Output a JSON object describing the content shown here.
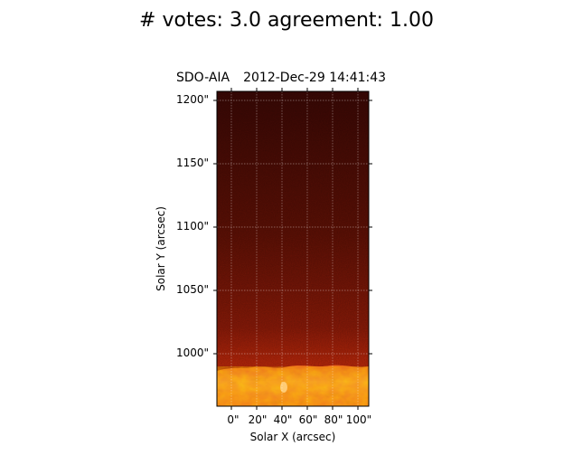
{
  "suptitle": "# votes: 3.0 agreement: 1.00",
  "plot": {
    "instrument": "SDO-AIA",
    "timestamp": "2012-Dec-29 14:41:43",
    "xlabel": "Solar X (arcsec)",
    "ylabel": "Solar Y (arcsec)",
    "xticks": [
      "0\"",
      "20\"",
      "40\"",
      "60\"",
      "80\"",
      "100\""
    ],
    "yticks": [
      "1200\"",
      "1150\"",
      "1100\"",
      "1050\"",
      "1000\""
    ],
    "colors": {
      "top": "#3a0805",
      "mid": "#8a1a08",
      "bottom": "#b5260a",
      "limb": "#f0861a",
      "grid": "#ffffff"
    }
  }
}
